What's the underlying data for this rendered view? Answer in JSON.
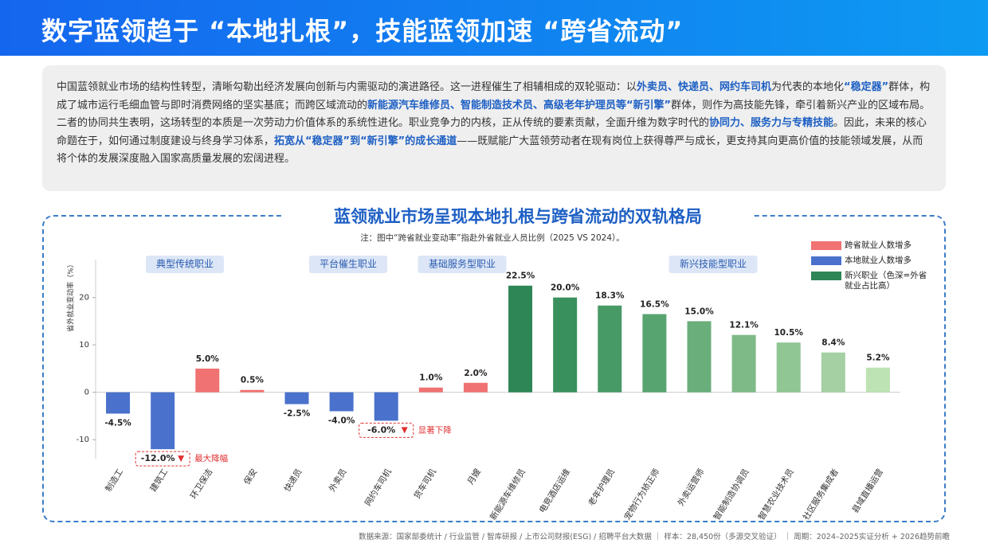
{
  "header": {
    "title": "数字蓝领趋于 “本地扎根”，技能蓝领加速 “跨省流动”"
  },
  "intro": {
    "paragraphs": [
      [
        {
          "text": "中国蓝领就业市场的结构性转型，清晰勾勒出经济发展向创新与内需驱动的演进路径。这一进程催生了相辅相成的双轮驱动：以",
          "emphasis": false
        },
        {
          "text": "外卖员、快递员、网约车司机",
          "emphasis": true
        },
        {
          "text": "为代表的本地化",
          "emphasis": false
        },
        {
          "text": "“稳定器”",
          "emphasis": true
        },
        {
          "text": "群体，构成了城市运行毛细血管与即时消费网络的坚实基底；而跨区域流动的",
          "emphasis": false
        },
        {
          "text": "新能源汽车维修员、智能制造技术员、高级老年护理员等“新引擎”",
          "emphasis": true
        },
        {
          "text": "群体，则作为高技能先锋，牵引着新兴产业的区域布局。",
          "emphasis": false
        }
      ],
      [
        {
          "text": "二者的协同共生表明，这场转型的本质是一次劳动力价值体系的系统性进化。职业竞争力的内核，正从传统的要素贡献，全面升维为数字时代的",
          "emphasis": false
        },
        {
          "text": "协同力、服务力与专精技能",
          "emphasis": true
        },
        {
          "text": "。因此，未来的核心命题在于，如何通过制度建设与终身学习体系，",
          "emphasis": false
        },
        {
          "text": "拓宽从“稳定器”到“新引擎”的成长通道",
          "emphasis": true
        },
        {
          "text": "——既赋能广大蓝领劳动者在现有岗位上获得尊严与成长，更支持其向更高价值的技能领域发展，从而将个体的发展深度融入国家高质量发展的宏阔进程。",
          "emphasis": false
        }
      ]
    ]
  },
  "chart_data": {
    "type": "bar",
    "title": "蓝领就业市场呈现本地扎根与跨省流动的双轨格局",
    "note": "注：图中“跨省就业变动率”指赴外省就业人员比例（2025 VS 2024）。",
    "y_label": "省外就业变动率（%）",
    "categories": [
      "制造工",
      "建筑工",
      "环卫保洁",
      "保安",
      "快递员",
      "外卖员",
      "网约车司机",
      "货车司机",
      "月嫂",
      "新能源车维修员",
      "电竞酒店运维",
      "老年护理员",
      "宠物行为矫正师",
      "外卖运营师",
      "智能制造协调员",
      "智慧农业技术员",
      "社区服务集成者",
      "县域直播运营"
    ],
    "values": [
      -4.5,
      -12.0,
      5.0,
      0.5,
      -2.5,
      -4.0,
      -6.0,
      1.0,
      2.0,
      22.5,
      20.0,
      18.3,
      16.5,
      15.0,
      12.1,
      10.5,
      8.4,
      5.2
    ],
    "value_labels": [
      "-4.5%",
      "-12.0%",
      "5.0%",
      "0.5%",
      "-2.5%",
      "-4.0%",
      "-6.0%",
      "1.0%",
      "2.0%",
      "22.5%",
      "20.0%",
      "18.3%",
      "16.5%",
      "15.0%",
      "12.1%",
      "10.5%",
      "8.4%",
      "5.2%"
    ],
    "colors": [
      "#4a72cc",
      "#4a72cc",
      "#f07272",
      "#f07272",
      "#4a72cc",
      "#4a72cc",
      "#4a72cc",
      "#f07272",
      "#f07272",
      "#2e8656",
      "#3a905d",
      "#479966",
      "#58a470",
      "#6aae7b",
      "#7dba88",
      "#90c594",
      "#a5d0a3",
      "#bde2b4"
    ],
    "ylim": [
      -14,
      28
    ],
    "yticks": [
      -10,
      0,
      10,
      20
    ],
    "groups": [
      "典型传统职业",
      "平台催生职业",
      "基础服务型职业",
      "新兴技能型职业"
    ],
    "annotations": [
      {
        "text": "最大降幅",
        "category": "建筑工"
      },
      {
        "text": "显著下降",
        "category": "网约车司机"
      }
    ],
    "legend": [
      {
        "label": "跨省就业人数增多",
        "color": "#f07272"
      },
      {
        "label": "本地就业人数增多",
        "color": "#4a72cc"
      },
      {
        "label": "新兴职业（色深=外省就业占比高）",
        "color": "#2e8656"
      }
    ]
  },
  "footer": {
    "source": "数据来源：国家部委统计 / 行业监管 / 智库研报 / 上市公司财报(ESG) / 招聘平台大数据 ｜ 样本：28,450份（多源交叉验证） ｜ 周期：2024–2025实证分析 + 2026趋势前瞻"
  }
}
